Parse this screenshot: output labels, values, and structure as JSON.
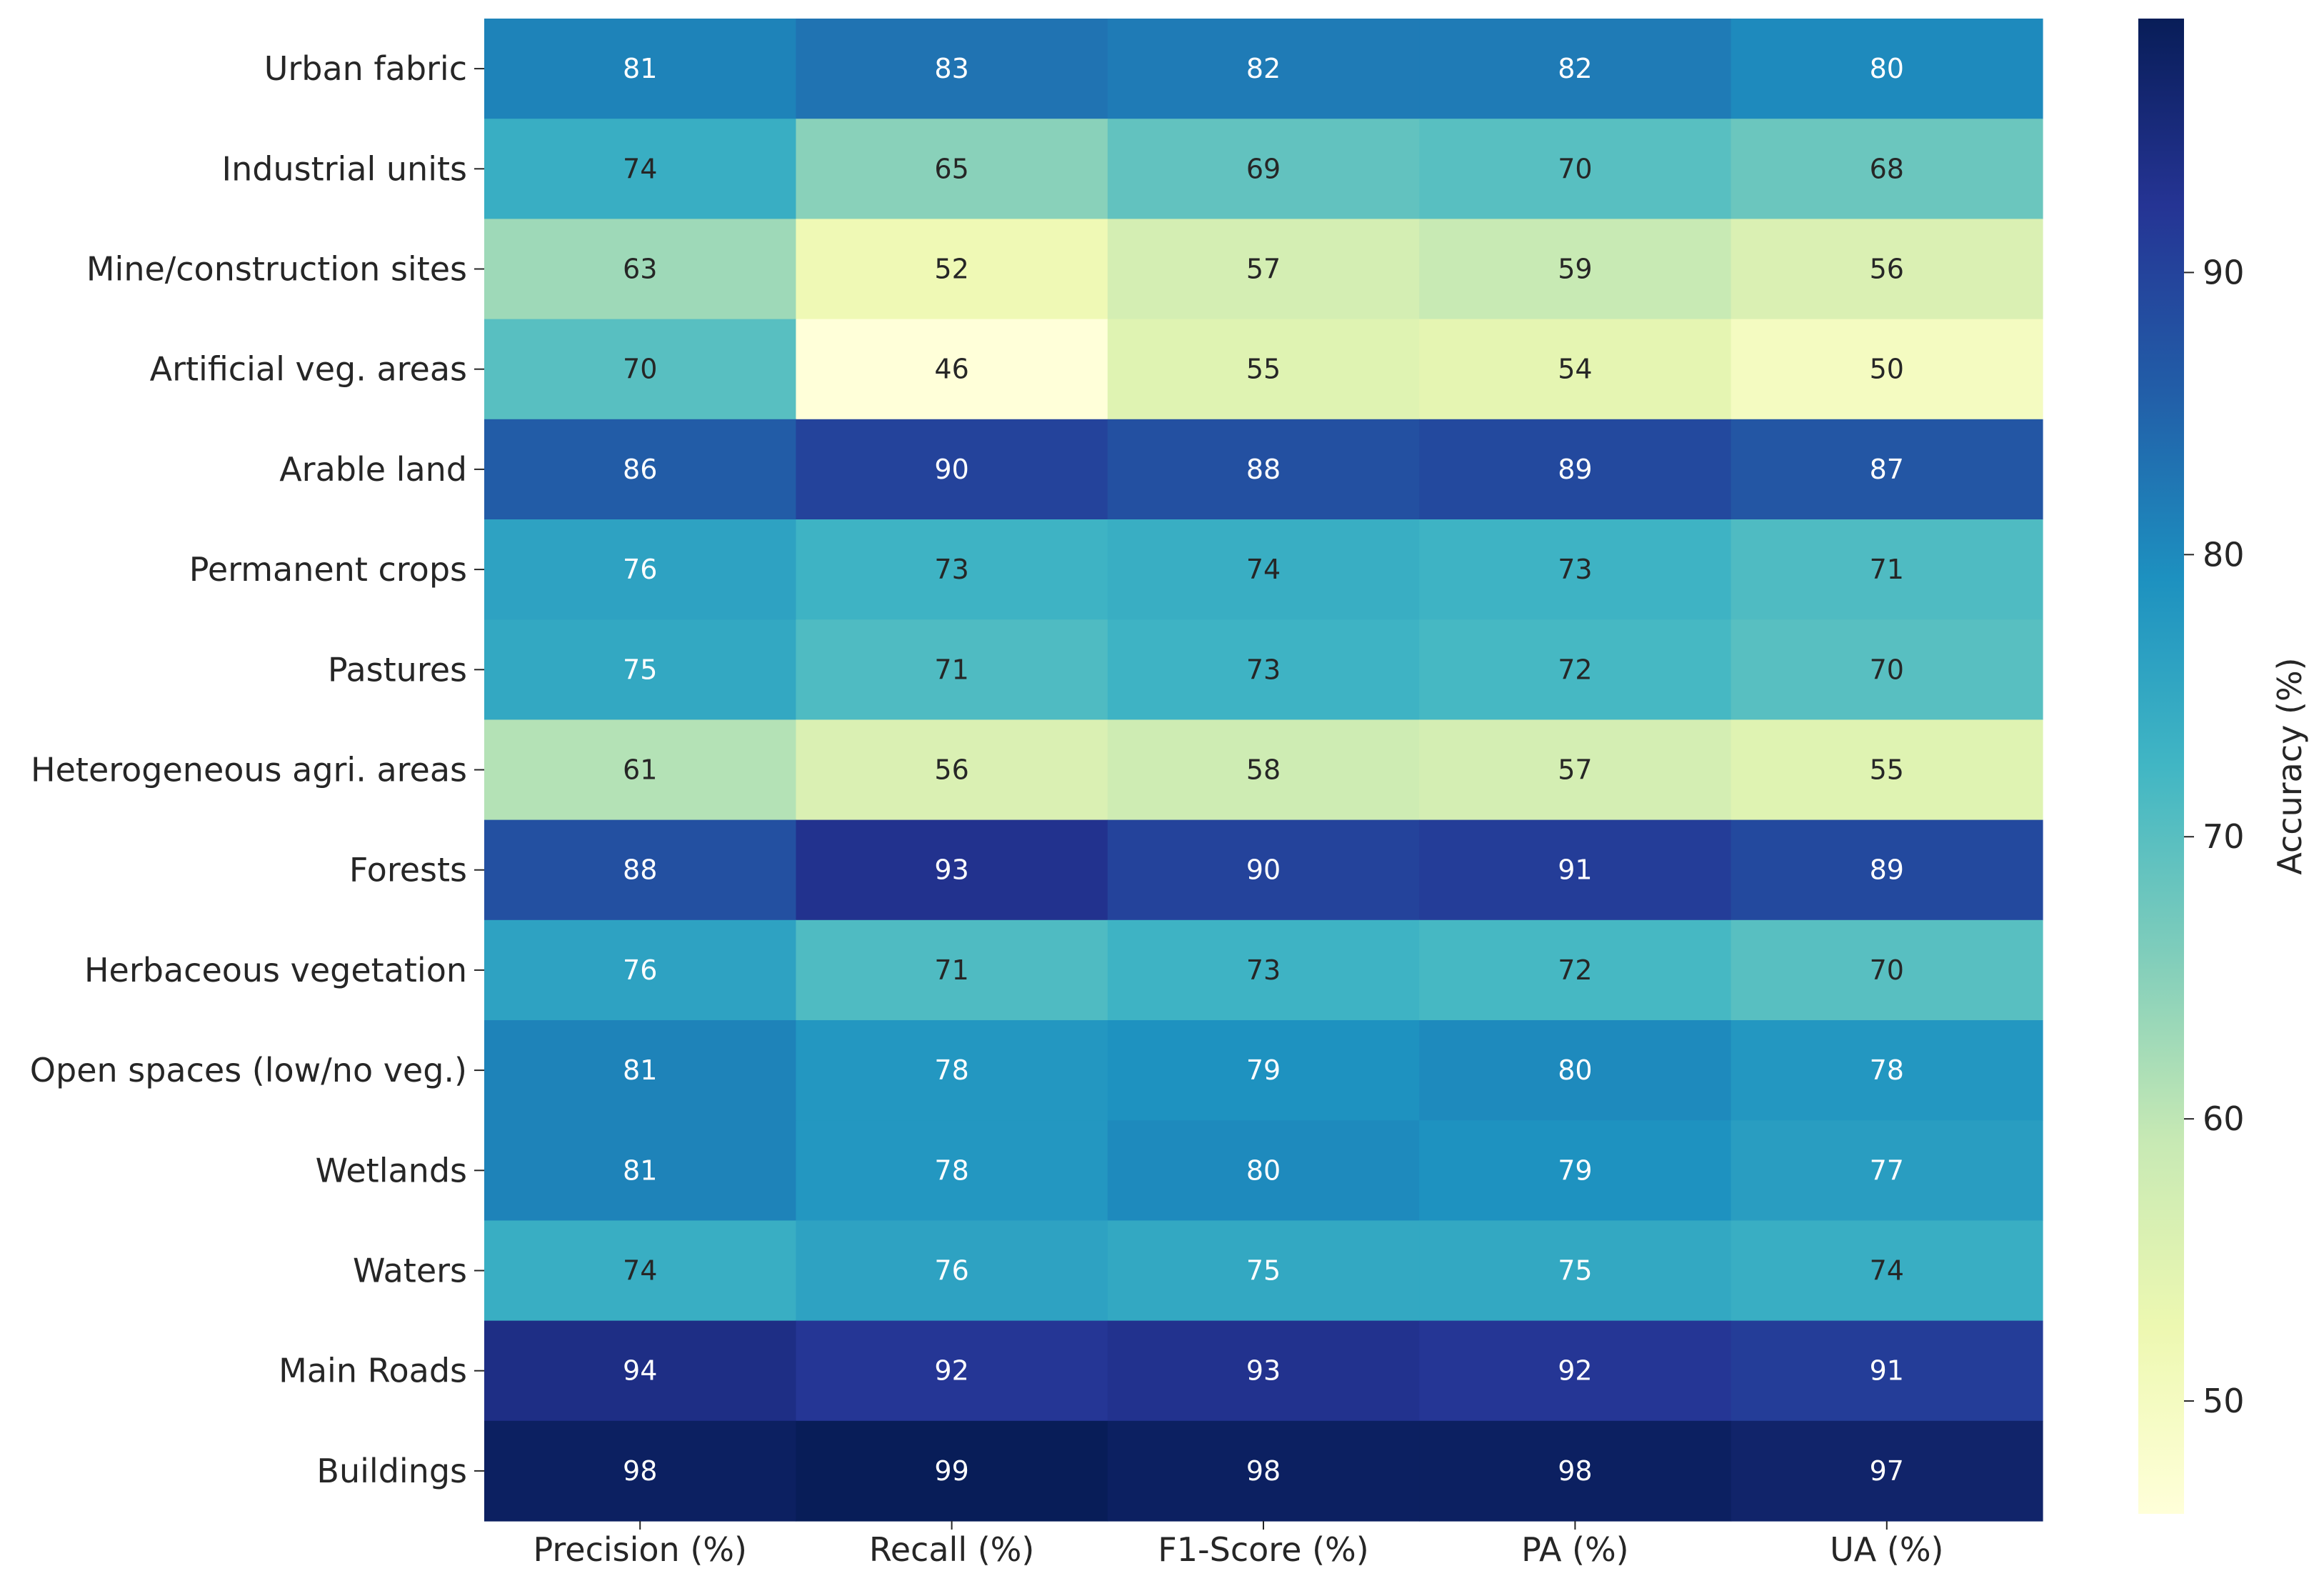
{
  "chart_data": {
    "type": "heatmap",
    "rows": [
      "Urban fabric",
      "Industrial units",
      "Mine/construction sites",
      "Artificial veg. areas",
      "Arable land",
      "Permanent crops",
      "Pastures",
      "Heterogeneous agri. areas",
      "Forests",
      "Herbaceous vegetation",
      "Open spaces (low/no veg.)",
      "Wetlands",
      "Waters",
      "Main Roads",
      "Buildings"
    ],
    "columns": [
      "Precision (%)",
      "Recall (%)",
      "F1-Score (%)",
      "PA (%)",
      "UA (%)"
    ],
    "values": [
      [
        81,
        83,
        82,
        82,
        80
      ],
      [
        74,
        65,
        69,
        70,
        68
      ],
      [
        63,
        52,
        57,
        59,
        56
      ],
      [
        70,
        46,
        55,
        54,
        50
      ],
      [
        86,
        90,
        88,
        89,
        87
      ],
      [
        76,
        73,
        74,
        73,
        71
      ],
      [
        75,
        71,
        73,
        72,
        70
      ],
      [
        61,
        56,
        58,
        57,
        55
      ],
      [
        88,
        93,
        90,
        91,
        89
      ],
      [
        76,
        71,
        73,
        72,
        70
      ],
      [
        81,
        78,
        79,
        80,
        78
      ],
      [
        81,
        78,
        80,
        79,
        77
      ],
      [
        74,
        76,
        75,
        75,
        74
      ],
      [
        94,
        92,
        93,
        92,
        91
      ],
      [
        98,
        99,
        98,
        98,
        97
      ]
    ],
    "colorbar": {
      "label": "Accuracy (%)",
      "ticks": [
        50,
        60,
        70,
        80,
        90
      ],
      "range": [
        46,
        99
      ],
      "colormap": "YlGnBu"
    },
    "colormap_stops": [
      "#ffffd9",
      "#edf8b1",
      "#c7e9b4",
      "#7fcdbb",
      "#41b6c4",
      "#1d91c0",
      "#225ea8",
      "#253494",
      "#081d58"
    ],
    "text_light": "#ffffff",
    "text_dark": "#262626"
  }
}
